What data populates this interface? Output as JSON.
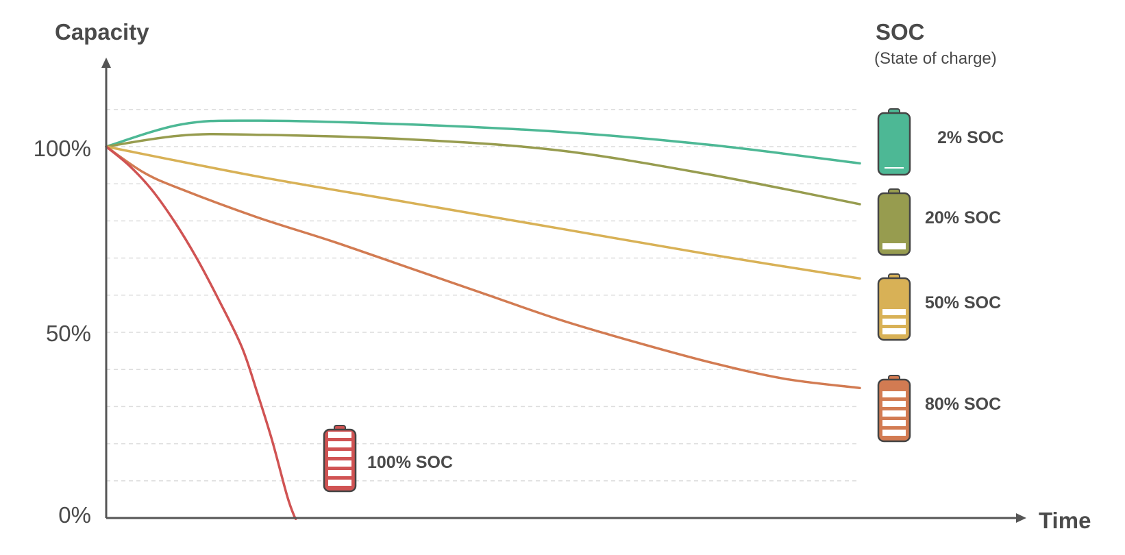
{
  "chart_data": {
    "type": "line",
    "xlabel": "Time",
    "ylabel": "Capacity",
    "ylim": [
      0,
      100
    ],
    "y_ticks": [
      "0%",
      "50%",
      "100%"
    ],
    "grid": "horizontal dashed",
    "legend": {
      "title": "SOC",
      "subtitle": "(State of charge)",
      "placement": "right"
    },
    "series": [
      {
        "name": "2% SOC",
        "soc": 2,
        "color": "#4db895",
        "x": [
          0,
          0.1,
          0.2,
          0.4,
          0.6,
          0.8,
          1.0
        ],
        "y": [
          100,
          106,
          107,
          106,
          104,
          100.5,
          95.5
        ]
      },
      {
        "name": "20% SOC",
        "soc": 20,
        "color": "#979c4f",
        "x": [
          0,
          0.1,
          0.2,
          0.4,
          0.6,
          0.8,
          1.0
        ],
        "y": [
          100,
          103,
          103.2,
          102,
          99,
          92.5,
          84.5
        ]
      },
      {
        "name": "50% SOC",
        "soc": 50,
        "color": "#d8b156",
        "x": [
          0,
          0.2,
          0.4,
          0.6,
          0.8,
          1.0
        ],
        "y": [
          100,
          92,
          85,
          78,
          71,
          64.5
        ]
      },
      {
        "name": "80% SOC",
        "soc": 80,
        "color": "#d27b52",
        "x": [
          0,
          0.05,
          0.1,
          0.2,
          0.3,
          0.4,
          0.5,
          0.6,
          0.7,
          0.8,
          0.9,
          1.0
        ],
        "y": [
          100,
          93,
          88.5,
          81,
          74.5,
          67.5,
          60.5,
          53.5,
          47.5,
          42,
          37.5,
          35
        ]
      },
      {
        "name": "100% SOC",
        "soc": 100,
        "color": "#d05353",
        "x": [
          0,
          0.03,
          0.06,
          0.09,
          0.12,
          0.15,
          0.18,
          0.2,
          0.22,
          0.24,
          0.25,
          0.252
        ],
        "y": [
          100,
          95,
          88.5,
          80,
          70,
          58.5,
          46,
          34,
          21,
          6,
          0.3,
          0
        ]
      }
    ]
  }
}
